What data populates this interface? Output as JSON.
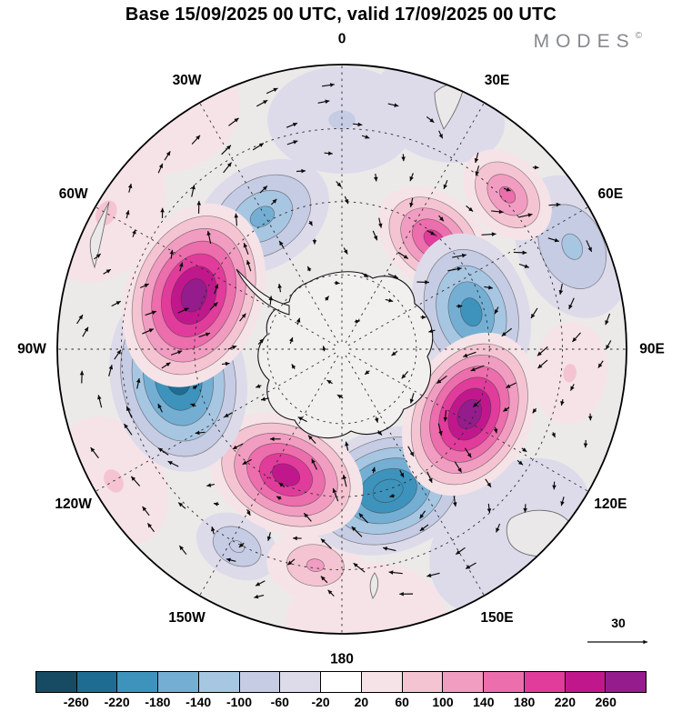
{
  "header": {
    "title": "Base 15/09/2025 00 UTC, valid 17/09/2025 00 UTC",
    "logo": "MODES",
    "logo_sup": "©"
  },
  "map": {
    "background_color": "#ECE9E9",
    "land_color": "#F2EFEF",
    "longitude_labels": [
      {
        "label": "0",
        "bearing": 0
      },
      {
        "label": "30E",
        "bearing": 30
      },
      {
        "label": "60E",
        "bearing": 60
      },
      {
        "label": "90E",
        "bearing": 90
      },
      {
        "label": "120E",
        "bearing": 120
      },
      {
        "label": "150E",
        "bearing": 150
      },
      {
        "label": "180",
        "bearing": 180
      },
      {
        "label": "150W",
        "bearing": 210
      },
      {
        "label": "120W",
        "bearing": 240
      },
      {
        "label": "90W",
        "bearing": 270
      },
      {
        "label": "60W",
        "bearing": 300
      },
      {
        "label": "30W",
        "bearing": 330
      }
    ]
  },
  "vector_reference": {
    "label": "30",
    "value": 30
  },
  "colorbar": {
    "labels": [
      "-260",
      "-220",
      "-180",
      "-140",
      "-100",
      "-60",
      "-20",
      "20",
      "60",
      "100",
      "140",
      "180",
      "220",
      "260"
    ],
    "colors": [
      "#174A63",
      "#1F6C93",
      "#3E93BC",
      "#74AFD3",
      "#A7C6E2",
      "#C5CCE3",
      "#DDDBEA",
      "#FFFFFF",
      "#F6E3E7",
      "#F5C4D3",
      "#F19DC1",
      "#EC6EAC",
      "#E13C9B",
      "#C0188C",
      "#941C8C"
    ]
  },
  "chart_data": {
    "type": "heatmap",
    "title": "Base 15/09/2025 00 UTC, valid 17/09/2025 00 UTC",
    "projection": "south-polar-stereographic",
    "legend_position": "bottom",
    "grid": "dashed-graticule",
    "color_levels": [
      -260,
      -220,
      -180,
      -140,
      -100,
      -60,
      -20,
      20,
      60,
      100,
      140,
      180,
      220,
      260
    ],
    "colors": [
      "#174A63",
      "#1F6C93",
      "#3E93BC",
      "#74AFD3",
      "#A7C6E2",
      "#C5CCE3",
      "#DDDBEA",
      "#FFFFFF",
      "#F6E3E7",
      "#F5C4D3",
      "#F19DC1",
      "#EC6EAC",
      "#E13C9B",
      "#C0188C",
      "#941C8C"
    ],
    "vector_reference_value": 30,
    "longitude_ring_labels": [
      "0",
      "30E",
      "60E",
      "90E",
      "120E",
      "150E",
      "180",
      "150W",
      "120W",
      "90W",
      "60W",
      "30W"
    ],
    "anomaly_features": [
      {
        "lon": 0,
        "r": 0.0,
        "peak": -20,
        "size": 0.24
      },
      {
        "lon": 0,
        "r": 0.8,
        "peak": -70,
        "size": 0.26
      },
      {
        "lon": 22,
        "r": 0.9,
        "peak": -60,
        "size": 0.24
      },
      {
        "lon": 138,
        "r": 0.88,
        "peak": -60,
        "size": 0.32
      },
      {
        "lon": -35,
        "r": 0.97,
        "peak": 30,
        "size": 0.22
      },
      {
        "lon": 175,
        "r": 0.95,
        "peak": 40,
        "size": 0.28
      },
      {
        "lon": -120,
        "r": 0.92,
        "peak": 60,
        "size": 0.24
      },
      {
        "lon": -60,
        "r": 0.95,
        "peak": 60,
        "size": 0.26
      },
      {
        "lon": 96,
        "r": 0.8,
        "peak": 60,
        "size": 0.18
      },
      {
        "lon": 66,
        "r": 0.88,
        "peak": -110,
        "size": 0.26
      },
      {
        "lon": -152,
        "r": 0.78,
        "peak": -90,
        "size": 0.15
      },
      {
        "lon": -173,
        "r": 0.76,
        "peak": 110,
        "size": 0.17
      },
      {
        "lon": 47,
        "r": 0.79,
        "peak": 150,
        "size": 0.18
      },
      {
        "lon": -31,
        "r": 0.54,
        "peak": -150,
        "size": 0.25
      },
      {
        "lon": 40,
        "r": 0.5,
        "peak": 190,
        "size": 0.22
      },
      {
        "lon": 74,
        "r": 0.47,
        "peak": -190,
        "size": 0.28
      },
      {
        "lon": 162,
        "r": 0.52,
        "peak": -210,
        "size": 0.3
      },
      {
        "lon": -156,
        "r": 0.48,
        "peak": 230,
        "size": 0.28
      },
      {
        "lon": -100,
        "r": 0.58,
        "peak": -230,
        "size": 0.33
      },
      {
        "lon": -70,
        "r": 0.55,
        "peak": 270,
        "size": 0.33
      },
      {
        "lon": 117,
        "r": 0.5,
        "peak": 270,
        "size": 0.3
      }
    ]
  }
}
